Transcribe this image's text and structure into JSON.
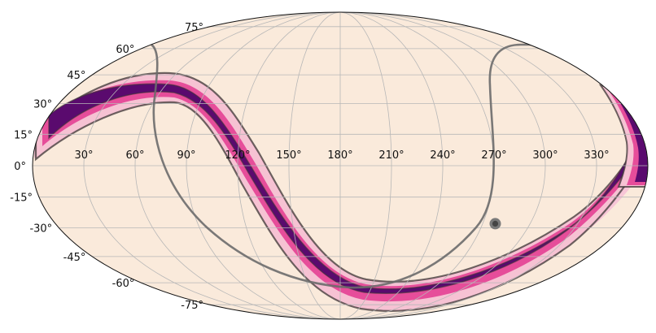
{
  "map": {
    "projection": "mollweide",
    "grid": true,
    "colors": {
      "background": "#faeadb",
      "band_outer": "#f7c6d7",
      "band_mid": "#e64d9a",
      "band_inner": "#5a0a6e",
      "contour": "#3c3535",
      "grid": "#b7b7b7",
      "track": "#6b6b6b",
      "point": "#444444"
    },
    "lat_labels": [
      {
        "value": 75,
        "label": "75$^\\circ$"
      },
      {
        "value": 60,
        "label": "60$^\\circ$"
      },
      {
        "value": 45,
        "label": "45$^\\circ$"
      },
      {
        "value": 30,
        "label": "30$^\\circ$"
      },
      {
        "value": 15,
        "label": "15$^\\circ$"
      },
      {
        "value": 0,
        "label": "0$^\\circ$"
      },
      {
        "value": -15,
        "label": "-15$^\\circ$"
      },
      {
        "value": -30,
        "label": "-30$^\\circ$"
      },
      {
        "value": -45,
        "label": "-45$^\\circ$"
      },
      {
        "value": -60,
        "label": "-60$^\\circ$"
      },
      {
        "value": -75,
        "label": "-75$^\\circ$"
      }
    ],
    "lon_labels": [
      {
        "value": 330,
        "label": "330$^\\circ$"
      },
      {
        "value": 300,
        "label": "300$^\\circ$"
      },
      {
        "value": 270,
        "label": "270$^\\circ$"
      },
      {
        "value": 240,
        "label": "240$^\\circ$"
      },
      {
        "value": 210,
        "label": "210$^\\circ$"
      },
      {
        "value": 180,
        "label": "180$^\\circ$"
      },
      {
        "value": 150,
        "label": "150$^\\circ$"
      },
      {
        "value": 120,
        "label": "120$^\\circ$"
      },
      {
        "value": 90,
        "label": "90$^\\circ$"
      },
      {
        "value": 60,
        "label": "60$^\\circ$"
      },
      {
        "value": 30,
        "label": "30$^\\circ$"
      }
    ],
    "point": {
      "lon": 278,
      "lat": -28
    }
  }
}
